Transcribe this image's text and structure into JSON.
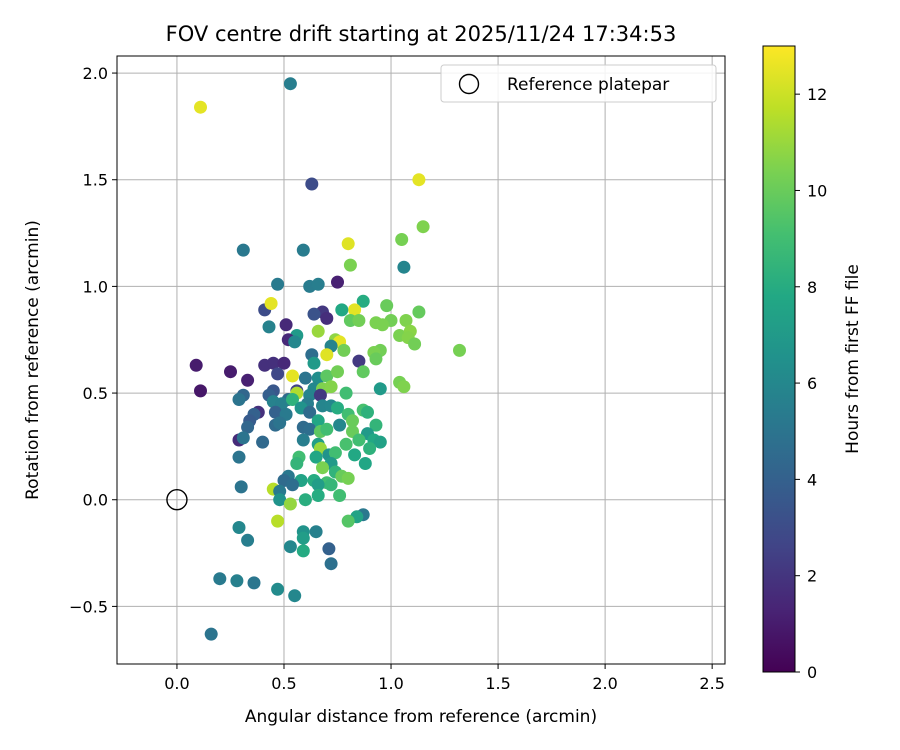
{
  "chart_data": {
    "type": "scatter",
    "title": "FOV centre drift starting at 2025/11/24 17:34:53",
    "xlabel": "Angular distance from reference (arcmin)",
    "ylabel": "Rotation from reference (arcmin)",
    "xlim": [
      -0.28,
      2.56
    ],
    "ylim": [
      -0.77,
      2.08
    ],
    "xticks": [
      0.0,
      0.5,
      1.0,
      1.5,
      2.0,
      2.5
    ],
    "xtick_labels": [
      "0.0",
      "0.5",
      "1.0",
      "1.5",
      "2.0",
      "2.5"
    ],
    "yticks": [
      -0.5,
      0.0,
      0.5,
      1.0,
      1.5,
      2.0
    ],
    "ytick_labels": [
      "−0.5",
      "0.0",
      "0.5",
      "1.0",
      "1.5",
      "2.0"
    ],
    "grid": true,
    "legend": {
      "position": "top-right",
      "entries": [
        "Reference platepar"
      ]
    },
    "reference_point": {
      "x": 0.0,
      "y": 0.0,
      "label": "Reference platepar"
    },
    "colorbar": {
      "label": "Hours from first FF file",
      "range": [
        0,
        13
      ],
      "ticks": [
        0,
        2,
        4,
        6,
        8,
        10,
        12
      ],
      "tick_labels": [
        "0",
        "2",
        "4",
        "6",
        "8",
        "10",
        "12"
      ],
      "colormap": "viridis"
    },
    "points": [
      [
        0.11,
        1.84,
        12.5
      ],
      [
        0.53,
        1.95,
        5.5
      ],
      [
        0.63,
        1.48,
        3.0
      ],
      [
        1.13,
        1.5,
        12.5
      ],
      [
        1.15,
        1.28,
        10.5
      ],
      [
        1.05,
        1.22,
        10.3
      ],
      [
        0.8,
        1.2,
        12.4
      ],
      [
        0.31,
        1.17,
        5.2
      ],
      [
        0.59,
        1.17,
        5.4
      ],
      [
        0.81,
        1.1,
        10.4
      ],
      [
        1.06,
        1.09,
        5.9
      ],
      [
        0.75,
        1.02,
        1.2
      ],
      [
        0.47,
        1.01,
        5.3
      ],
      [
        0.62,
        1.0,
        5.4
      ],
      [
        0.66,
        1.01,
        5.5
      ],
      [
        0.87,
        0.93,
        8.0
      ],
      [
        0.98,
        0.91,
        10.0
      ],
      [
        0.41,
        0.89,
        3.0
      ],
      [
        0.44,
        0.92,
        12.5
      ],
      [
        0.68,
        0.88,
        2.1
      ],
      [
        0.64,
        0.87,
        3.3
      ],
      [
        0.7,
        0.85,
        1.7
      ],
      [
        0.83,
        0.89,
        12.5
      ],
      [
        0.77,
        0.89,
        7.8
      ],
      [
        0.81,
        0.84,
        9.8
      ],
      [
        1.13,
        0.88,
        9.9
      ],
      [
        1.0,
        0.84,
        10.2
      ],
      [
        0.85,
        0.84,
        10.2
      ],
      [
        0.93,
        0.83,
        10.4
      ],
      [
        0.96,
        0.82,
        10.4
      ],
      [
        1.07,
        0.84,
        10.5
      ],
      [
        0.51,
        0.82,
        1.5
      ],
      [
        0.43,
        0.81,
        5.7
      ],
      [
        0.66,
        0.79,
        11.0
      ],
      [
        0.56,
        0.77,
        7.0
      ],
      [
        1.04,
        0.77,
        10.4
      ],
      [
        1.09,
        0.79,
        10.7
      ],
      [
        1.08,
        0.76,
        10.6
      ],
      [
        0.52,
        0.75,
        1.5
      ],
      [
        0.74,
        0.75,
        10.8
      ],
      [
        0.76,
        0.74,
        12.5
      ],
      [
        0.55,
        0.74,
        6.0
      ],
      [
        0.72,
        0.72,
        5.8
      ],
      [
        1.11,
        0.73,
        10.2
      ],
      [
        1.32,
        0.7,
        10.3
      ],
      [
        0.95,
        0.7,
        10.2
      ],
      [
        0.92,
        0.69,
        10.4
      ],
      [
        0.78,
        0.7,
        10.2
      ],
      [
        0.63,
        0.68,
        4.7
      ],
      [
        0.7,
        0.68,
        12.4
      ],
      [
        0.85,
        0.65,
        2.2
      ],
      [
        0.93,
        0.66,
        10.0
      ],
      [
        0.09,
        0.63,
        1.0
      ],
      [
        0.41,
        0.63,
        1.8
      ],
      [
        0.45,
        0.64,
        1.8
      ],
      [
        0.5,
        0.64,
        1.5
      ],
      [
        0.64,
        0.64,
        7.0
      ],
      [
        0.25,
        0.6,
        1.0
      ],
      [
        0.47,
        0.59,
        2.8
      ],
      [
        0.54,
        0.58,
        12.5
      ],
      [
        0.6,
        0.57,
        5.0
      ],
      [
        0.66,
        0.57,
        6.3
      ],
      [
        0.7,
        0.58,
        9.7
      ],
      [
        0.75,
        0.6,
        10.2
      ],
      [
        0.87,
        0.6,
        9.8
      ],
      [
        0.33,
        0.56,
        1.2
      ],
      [
        1.04,
        0.55,
        10.3
      ],
      [
        1.06,
        0.53,
        10.5
      ],
      [
        0.11,
        0.51,
        0.8
      ],
      [
        0.45,
        0.51,
        3.5
      ],
      [
        0.56,
        0.51,
        2.5
      ],
      [
        0.64,
        0.52,
        6.0
      ],
      [
        0.68,
        0.52,
        10.5
      ],
      [
        0.72,
        0.53,
        10.6
      ],
      [
        0.95,
        0.52,
        7.0
      ],
      [
        0.56,
        0.5,
        11.4
      ],
      [
        0.31,
        0.49,
        4.3
      ],
      [
        0.29,
        0.47,
        5.0
      ],
      [
        0.43,
        0.49,
        3.9
      ],
      [
        0.52,
        0.47,
        4.5
      ],
      [
        0.62,
        0.49,
        5.8
      ],
      [
        0.67,
        0.49,
        2.2
      ],
      [
        0.79,
        0.5,
        9.0
      ],
      [
        0.45,
        0.46,
        5.7
      ],
      [
        0.49,
        0.45,
        5.6
      ],
      [
        0.54,
        0.47,
        8.3
      ],
      [
        0.61,
        0.45,
        5.5
      ],
      [
        0.58,
        0.43,
        6.6
      ],
      [
        0.68,
        0.44,
        5.9
      ],
      [
        0.72,
        0.44,
        6.0
      ],
      [
        0.75,
        0.43,
        8.0
      ],
      [
        0.38,
        0.41,
        1.8
      ],
      [
        0.46,
        0.41,
        4.0
      ],
      [
        0.51,
        0.4,
        5.3
      ],
      [
        0.62,
        0.41,
        4.5
      ],
      [
        0.8,
        0.4,
        9.0
      ],
      [
        0.87,
        0.42,
        9.2
      ],
      [
        0.89,
        0.41,
        8.3
      ],
      [
        0.36,
        0.4,
        4.0
      ],
      [
        0.34,
        0.37,
        3.7
      ],
      [
        0.46,
        0.35,
        4.5
      ],
      [
        0.48,
        0.36,
        5.0
      ],
      [
        0.66,
        0.37,
        7.7
      ],
      [
        0.76,
        0.35,
        6.0
      ],
      [
        0.82,
        0.37,
        10.0
      ],
      [
        0.93,
        0.35,
        8.5
      ],
      [
        0.33,
        0.34,
        4.3
      ],
      [
        0.59,
        0.34,
        4.5
      ],
      [
        0.62,
        0.33,
        4.7
      ],
      [
        0.67,
        0.32,
        9.7
      ],
      [
        0.7,
        0.33,
        9.0
      ],
      [
        0.82,
        0.32,
        10.0
      ],
      [
        0.89,
        0.31,
        7.0
      ],
      [
        0.29,
        0.28,
        1.6
      ],
      [
        0.31,
        0.29,
        5.0
      ],
      [
        0.4,
        0.27,
        4.4
      ],
      [
        0.59,
        0.28,
        5.5
      ],
      [
        0.66,
        0.26,
        7.3
      ],
      [
        0.79,
        0.26,
        9.2
      ],
      [
        0.85,
        0.28,
        9.0
      ],
      [
        0.92,
        0.28,
        7.8
      ],
      [
        0.95,
        0.27,
        7.4
      ],
      [
        0.67,
        0.24,
        11.0
      ],
      [
        0.9,
        0.24,
        8.3
      ],
      [
        0.71,
        0.21,
        6.6
      ],
      [
        0.74,
        0.22,
        9.0
      ],
      [
        0.83,
        0.21,
        7.8
      ],
      [
        0.29,
        0.2,
        5.0
      ],
      [
        0.57,
        0.2,
        9.0
      ],
      [
        0.56,
        0.17,
        8.5
      ],
      [
        0.65,
        0.2,
        7.7
      ],
      [
        0.72,
        0.17,
        7.0
      ],
      [
        0.88,
        0.17,
        7.7
      ],
      [
        0.68,
        0.15,
        10.4
      ],
      [
        0.74,
        0.13,
        8.4
      ],
      [
        0.52,
        0.11,
        5.2
      ],
      [
        0.77,
        0.11,
        10.0
      ],
      [
        0.8,
        0.1,
        10.3
      ],
      [
        0.5,
        0.09,
        4.5
      ],
      [
        0.58,
        0.09,
        7.5
      ],
      [
        0.64,
        0.09,
        8.0
      ],
      [
        0.7,
        0.08,
        9.0
      ],
      [
        0.54,
        0.07,
        4.7
      ],
      [
        0.66,
        0.07,
        7.2
      ],
      [
        0.72,
        0.07,
        8.6
      ],
      [
        0.3,
        0.06,
        5.0
      ],
      [
        0.45,
        0.05,
        11.6
      ],
      [
        0.48,
        0.04,
        5.3
      ],
      [
        0.66,
        0.02,
        8.0
      ],
      [
        0.76,
        0.02,
        9.0
      ],
      [
        0.6,
        0.0,
        8.1
      ],
      [
        0.48,
        0.0,
        6.6
      ],
      [
        0.53,
        -0.02,
        10.9
      ],
      [
        0.87,
        -0.07,
        5.2
      ],
      [
        0.84,
        -0.08,
        7.5
      ],
      [
        0.8,
        -0.1,
        9.5
      ],
      [
        0.47,
        -0.1,
        11.6
      ],
      [
        0.29,
        -0.13,
        6.0
      ],
      [
        0.59,
        -0.15,
        6.6
      ],
      [
        0.65,
        -0.15,
        5.6
      ],
      [
        0.59,
        -0.18,
        7.2
      ],
      [
        0.33,
        -0.19,
        5.5
      ],
      [
        0.53,
        -0.22,
        6.0
      ],
      [
        0.59,
        -0.24,
        7.9
      ],
      [
        0.71,
        -0.23,
        4.0
      ],
      [
        0.72,
        -0.3,
        4.8
      ],
      [
        0.2,
        -0.37,
        5.3
      ],
      [
        0.28,
        -0.38,
        5.6
      ],
      [
        0.36,
        -0.39,
        5.1
      ],
      [
        0.47,
        -0.42,
        6.2
      ],
      [
        0.55,
        -0.45,
        6.0
      ],
      [
        0.16,
        -0.63,
        5.0
      ]
    ]
  }
}
